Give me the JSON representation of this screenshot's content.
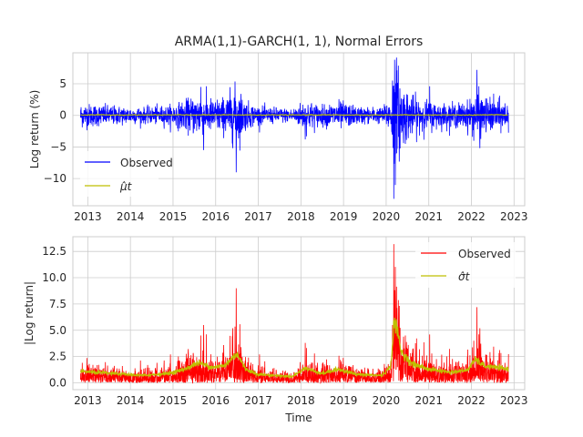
{
  "chart_data": [
    {
      "type": "line",
      "title": "ARMA(1,1)-GARCH(1, 1), Normal Errors",
      "xlabel": "",
      "ylabel": "Log return (%)",
      "xlim": [
        2012.65,
        2023.25
      ],
      "ylim": [
        -14.3,
        9.9
      ],
      "yticks": [
        5,
        0,
        -5,
        -10
      ],
      "ytick_labels": [
        "5",
        "0",
        "−5",
        "−10"
      ],
      "xticks": [
        2013,
        2014,
        2015,
        2016,
        2017,
        2018,
        2019,
        2020,
        2021,
        2022,
        2023
      ],
      "xtick_labels": [
        "2013",
        "2014",
        "2015",
        "2016",
        "2017",
        "2018",
        "2019",
        "2020",
        "2021",
        "2022",
        "2023"
      ],
      "grid": true,
      "legend_position": "lower-left",
      "series": [
        {
          "name": "Observed",
          "color": "#0000ff",
          "x_range": [
            2012.83,
            2022.87
          ],
          "spikes": [
            [
              2016.48,
              -9.0
            ],
            [
              2020.18,
              -13.2
            ],
            [
              2020.2,
              8.8
            ],
            [
              2022.13,
              7.2
            ],
            [
              2015.65,
              4.5
            ],
            [
              2020.25,
              -6.0
            ],
            [
              2021.02,
              4.6
            ],
            [
              2022.2,
              -5.2
            ],
            [
              2015.72,
              -5.5
            ],
            [
              2018.1,
              -3.8
            ],
            [
              2020.15,
              5.5
            ]
          ]
        },
        {
          "name": "$\\hat{\\mu}_t$",
          "display_name": "μ̂t",
          "color": "#bfbf00",
          "constant_value": 0.07
        }
      ]
    },
    {
      "type": "line",
      "title": "",
      "xlabel": "Time",
      "ylabel": "|Log return|",
      "xlim": [
        2012.65,
        2023.25
      ],
      "ylim": [
        -0.65,
        13.9
      ],
      "yticks": [
        0.0,
        2.5,
        5.0,
        7.5,
        10.0,
        12.5
      ],
      "ytick_labels": [
        "0.0",
        "2.5",
        "5.0",
        "7.5",
        "10.0",
        "12.5"
      ],
      "xticks": [
        2013,
        2014,
        2015,
        2016,
        2017,
        2018,
        2019,
        2020,
        2021,
        2022,
        2023
      ],
      "xtick_labels": [
        "2013",
        "2014",
        "2015",
        "2016",
        "2017",
        "2018",
        "2019",
        "2020",
        "2021",
        "2022",
        "2023"
      ],
      "grid": true,
      "legend_position": "upper-right",
      "series": [
        {
          "name": "Observed",
          "color": "#ff0000",
          "x_range": [
            2012.83,
            2022.87
          ],
          "spikes": [
            [
              2016.48,
              9.0
            ],
            [
              2020.18,
              13.2
            ],
            [
              2020.2,
              8.8
            ],
            [
              2022.13,
              7.2
            ],
            [
              2015.65,
              4.5
            ],
            [
              2015.72,
              5.5
            ],
            [
              2020.25,
              6.0
            ],
            [
              2021.02,
              4.6
            ],
            [
              2022.2,
              5.2
            ],
            [
              2018.1,
              3.8
            ]
          ]
        },
        {
          "name": "$\\hat{\\sigma}_t$",
          "display_name": "σ̂t",
          "color": "#bfbf00",
          "level_points": [
            [
              2012.83,
              1.1
            ],
            [
              2013.5,
              0.9
            ],
            [
              2014.3,
              0.7
            ],
            [
              2014.9,
              0.9
            ],
            [
              2015.2,
              1.2
            ],
            [
              2015.6,
              1.9
            ],
            [
              2015.9,
              1.5
            ],
            [
              2016.2,
              1.6
            ],
            [
              2016.5,
              2.8
            ],
            [
              2016.7,
              1.3
            ],
            [
              2017.0,
              0.8
            ],
            [
              2017.8,
              0.6
            ],
            [
              2018.1,
              1.4
            ],
            [
              2018.5,
              0.9
            ],
            [
              2018.9,
              1.3
            ],
            [
              2019.3,
              0.8
            ],
            [
              2019.9,
              0.7
            ],
            [
              2020.1,
              1.5
            ],
            [
              2020.2,
              6.1
            ],
            [
              2020.35,
              3.0
            ],
            [
              2020.6,
              1.8
            ],
            [
              2021.0,
              1.3
            ],
            [
              2021.5,
              1.0
            ],
            [
              2021.9,
              1.2
            ],
            [
              2022.1,
              2.2
            ],
            [
              2022.3,
              1.6
            ],
            [
              2022.5,
              1.5
            ],
            [
              2022.87,
              1.3
            ]
          ]
        }
      ]
    }
  ]
}
